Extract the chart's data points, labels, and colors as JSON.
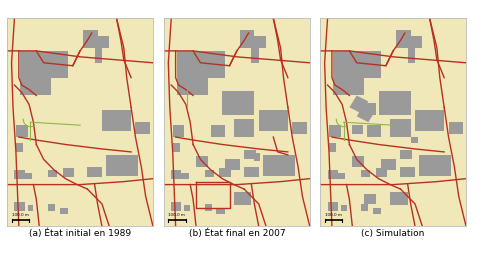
{
  "panel_labels": [
    "(a) État initial en 1989",
    "(b) État final en 2007",
    "(c) Simulation"
  ],
  "bg_color": "#f0e8b8",
  "road_color": "#b83020",
  "building_color": "#9a9a9a",
  "green_road_color": "#8db843",
  "figure_bg": "#ffffff",
  "scale_label": "100.0 m",
  "figsize": [
    4.78,
    2.6
  ],
  "dpi": 100
}
